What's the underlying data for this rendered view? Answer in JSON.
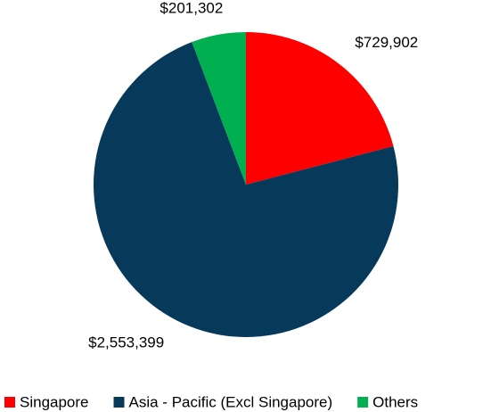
{
  "chart_data": {
    "type": "pie",
    "categories": [
      "Singapore",
      "Asia - Pacific (Excl Singapore)",
      "Others"
    ],
    "values": [
      729902,
      2553399,
      201302
    ],
    "value_labels": [
      "$729,902",
      "$2,553,399",
      "$201,302"
    ],
    "colors": [
      "#ff0000",
      "#06395a",
      "#00b050"
    ],
    "legend": "bottom"
  }
}
